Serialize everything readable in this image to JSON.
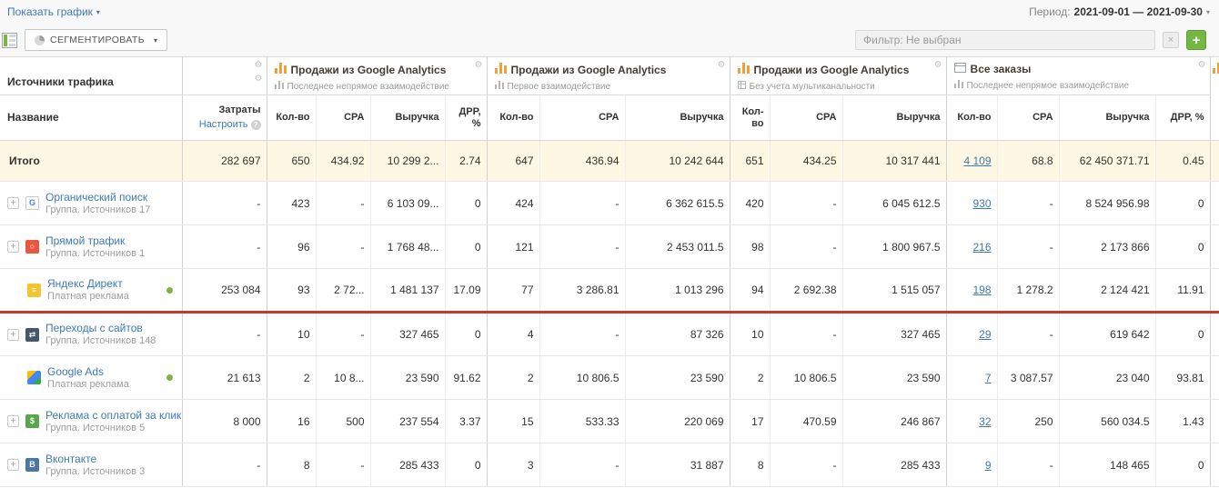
{
  "icons": {
    "chevron": "▾",
    "gear": "⚙",
    "plus": "+",
    "close": "×",
    "info": "?"
  },
  "topbar": {
    "show_chart": "Показать график",
    "period_label": "Период:",
    "period_value": "2021-09-01 — 2021-09-30"
  },
  "toolbar": {
    "segment": "СЕГМЕНТИРОВАТЬ",
    "filter": "Фильтр: Не выбран"
  },
  "table": {
    "sources_header": "Источники трафика",
    "name_header": "Название",
    "costs_header": "Затраты",
    "costs_configure": "Настроить",
    "groups": [
      {
        "title": "Продажи из Google Analytics",
        "subtitle": "Последнее непрямое взаимодействие",
        "cols": [
          "Кол-во",
          "CPA",
          "Выручка",
          "ДРР, %"
        ]
      },
      {
        "title": "Продажи из Google Analytics",
        "subtitle": "Первое взаимодействие",
        "cols": [
          "Кол-во",
          "CPA",
          "Выручка"
        ]
      },
      {
        "title": "Продажи из Google Analytics",
        "subtitle": "Без учета мультиканальности",
        "cols": [
          "Кол-во",
          "CPA",
          "Выручка"
        ]
      },
      {
        "title": "Все заказы",
        "subtitle": "Последнее непрямое взаимодействие",
        "cols": [
          "Кол-во",
          "CPA",
          "Выручка",
          "ДРР, %"
        ]
      }
    ],
    "rows": [
      {
        "type": "total",
        "name": "Итого",
        "costs": "282 697",
        "cells": [
          "650",
          "434.92",
          "10 299 2...",
          "2.74",
          "647",
          "436.94",
          "10 242 644",
          "651",
          "434.25",
          "10 317 441",
          "4 109",
          "68.8",
          "62 450 371.71",
          "0.45"
        ]
      },
      {
        "type": "source",
        "name": "Органический поиск",
        "subtitle": "Группа. Источников 17",
        "expandable": true,
        "active": false,
        "red_line_below": false,
        "icon": {
          "name": "organic-search-icon",
          "bg": "#ffffff",
          "border": "#c9c9c9",
          "fg": "#4285f4",
          "glyph": "G"
        },
        "costs": "-",
        "cells": [
          "423",
          "-",
          "6 103 09...",
          "0",
          "424",
          "-",
          "6 362 615.5",
          "420",
          "-",
          "6 045 612.5",
          "930",
          "-",
          "8 524 956.98",
          "0"
        ]
      },
      {
        "type": "source",
        "name": "Прямой трафик",
        "subtitle": "Группа. Источников 1",
        "expandable": true,
        "active": false,
        "red_line_below": false,
        "icon": {
          "name": "direct-traffic-icon",
          "bg": "#e8573f",
          "fg": "#ffffff",
          "glyph": "○"
        },
        "costs": "-",
        "cells": [
          "96",
          "-",
          "1 768 48...",
          "0",
          "121",
          "-",
          "2 453 011.5",
          "98",
          "-",
          "1 800 967.5",
          "216",
          "-",
          "2 173 866",
          "0"
        ]
      },
      {
        "type": "source",
        "name": "Яндекс Директ",
        "subtitle": "Платная реклама",
        "expandable": false,
        "active": true,
        "red_line_below": true,
        "icon": {
          "name": "yandex-direct-icon",
          "bg": "#f6c42e",
          "fg": "#ffffff",
          "glyph": "≡"
        },
        "costs": "253 084",
        "cells": [
          "93",
          "2 72...",
          "1 481 137",
          "17.09",
          "77",
          "3 286.81",
          "1 013 296",
          "94",
          "2 692.38",
          "1 515 057",
          "198",
          "1 278.2",
          "2 124 421",
          "11.91"
        ]
      },
      {
        "type": "source",
        "name": "Переходы с сайтов",
        "subtitle": "Группа. Источников 148",
        "expandable": true,
        "active": false,
        "red_line_below": false,
        "icon": {
          "name": "site-referrals-icon",
          "bg": "#46576a",
          "fg": "#ffffff",
          "glyph": "⇄"
        },
        "costs": "-",
        "cells": [
          "10",
          "-",
          "327 465",
          "0",
          "4",
          "-",
          "87 326",
          "10",
          "-",
          "327 465",
          "29",
          "-",
          "619 642",
          "0"
        ]
      },
      {
        "type": "source",
        "name": "Google Ads",
        "subtitle": "Платная реклама",
        "expandable": false,
        "active": true,
        "red_line_below": false,
        "icon": {
          "name": "google-ads-icon",
          "bg": "linear-gradient(135deg,#fbbc05 0%,#fbbc05 35%,#4285f4 35%,#4285f4 70%,#34a853 70%,#34a853 100%)",
          "fg": "#ffffff",
          "glyph": ""
        },
        "costs": "21 613",
        "cells": [
          "2",
          "10 8...",
          "23 590",
          "91.62",
          "2",
          "10 806.5",
          "23 590",
          "2",
          "10 806.5",
          "23 590",
          "7",
          "3 087.57",
          "23 040",
          "93.81"
        ]
      },
      {
        "type": "source",
        "name": "Реклама с оплатой за клик",
        "subtitle": "Группа. Источников 5",
        "expandable": true,
        "active": false,
        "red_line_below": false,
        "icon": {
          "name": "ppc-ads-icon",
          "bg": "#57a84c",
          "fg": "#ffffff",
          "glyph": "$"
        },
        "costs": "8 000",
        "cells": [
          "16",
          "500",
          "237 554",
          "3.37",
          "15",
          "533.33",
          "220 069",
          "17",
          "470.59",
          "246 867",
          "32",
          "250",
          "560 034.5",
          "1.43"
        ]
      },
      {
        "type": "source",
        "name": "Вконтакте",
        "subtitle": "Группа. Источников 3",
        "expandable": true,
        "active": false,
        "red_line_below": false,
        "icon": {
          "name": "vkontakte-icon",
          "bg": "#4c75a3",
          "fg": "#ffffff",
          "glyph": "В"
        },
        "costs": "-",
        "cells": [
          "8",
          "-",
          "285 433",
          "0",
          "3",
          "-",
          "31 887",
          "8",
          "-",
          "285 433",
          "9",
          "-",
          "148 465",
          "0"
        ]
      }
    ]
  }
}
